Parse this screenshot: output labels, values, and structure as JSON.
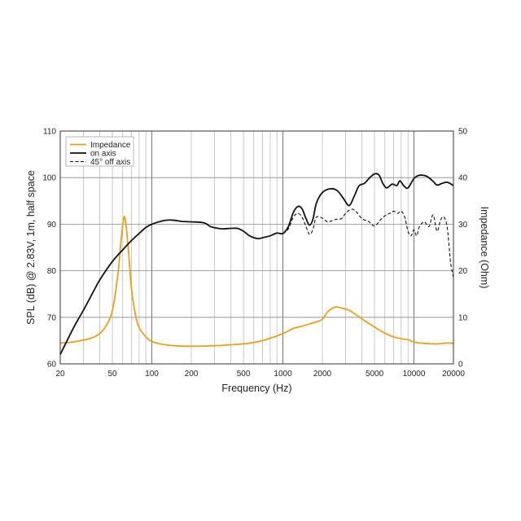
{
  "chart_data": {
    "type": "line",
    "xscale": "log",
    "xlabel": "Frequency (Hz)",
    "ylabel": "SPL (dB) @ 2.83V, 1m, half space",
    "y2label": "Impedance (Ohm)",
    "xlim": [
      20,
      20000
    ],
    "ylim": [
      60,
      110
    ],
    "y2lim": [
      0,
      50
    ],
    "grid": true,
    "legend_position": "top-left",
    "x_ticks": [
      {
        "value": 20,
        "label": "20"
      },
      {
        "value": 50,
        "label": "50"
      },
      {
        "value": 100,
        "label": "100"
      },
      {
        "value": 200,
        "label": "200"
      },
      {
        "value": 500,
        "label": "500"
      },
      {
        "value": 1000,
        "label": "1000"
      },
      {
        "value": 2000,
        "label": "2000"
      },
      {
        "value": 5000,
        "label": "5000"
      },
      {
        "value": 10000,
        "label": "10000"
      },
      {
        "value": 20000,
        "label": "20000"
      }
    ],
    "y_ticks": [
      {
        "value": 60,
        "label": "60"
      },
      {
        "value": 70,
        "label": "70"
      },
      {
        "value": 80,
        "label": "80"
      },
      {
        "value": 90,
        "label": "90"
      },
      {
        "value": 100,
        "label": "100"
      },
      {
        "value": 110,
        "label": "110"
      }
    ],
    "y2_ticks": [
      {
        "value": 0,
        "label": "0"
      },
      {
        "value": 10,
        "label": "10"
      },
      {
        "value": 20,
        "label": "20"
      },
      {
        "value": 30,
        "label": "30"
      },
      {
        "value": 40,
        "label": "40"
      },
      {
        "value": 50,
        "label": "50"
      }
    ],
    "series": [
      {
        "name": "Impedance",
        "axis": "right",
        "color": "#e8a11f",
        "dash": "solid",
        "points": [
          [
            20,
            4.5
          ],
          [
            25,
            4.7
          ],
          [
            30,
            5.1
          ],
          [
            35,
            5.6
          ],
          [
            40,
            6.5
          ],
          [
            45,
            8.3
          ],
          [
            50,
            11.5
          ],
          [
            55,
            19
          ],
          [
            58,
            26
          ],
          [
            61,
            31.3
          ],
          [
            63,
            30.5
          ],
          [
            66,
            25
          ],
          [
            70,
            16
          ],
          [
            75,
            10.5
          ],
          [
            80,
            7.8
          ],
          [
            90,
            5.8
          ],
          [
            100,
            4.8
          ],
          [
            120,
            4.2
          ],
          [
            150,
            3.9
          ],
          [
            200,
            3.8
          ],
          [
            300,
            3.9
          ],
          [
            400,
            4.1
          ],
          [
            500,
            4.3
          ],
          [
            600,
            4.6
          ],
          [
            700,
            5.0
          ],
          [
            800,
            5.5
          ],
          [
            1000,
            6.5
          ],
          [
            1200,
            7.6
          ],
          [
            1400,
            8.1
          ],
          [
            1600,
            8.6
          ],
          [
            1800,
            9.0
          ],
          [
            2000,
            9.6
          ],
          [
            2200,
            11.2
          ],
          [
            2500,
            12.2
          ],
          [
            2800,
            12.0
          ],
          [
            3200,
            11.5
          ],
          [
            3600,
            10.6
          ],
          [
            4000,
            9.7
          ],
          [
            5000,
            7.9
          ],
          [
            6000,
            6.6
          ],
          [
            7000,
            5.8
          ],
          [
            8000,
            5.4
          ],
          [
            9000,
            5.2
          ],
          [
            10000,
            4.7
          ],
          [
            12000,
            4.4
          ],
          [
            15000,
            4.3
          ],
          [
            18000,
            4.5
          ],
          [
            20000,
            4.4
          ]
        ]
      },
      {
        "name": "on axis",
        "axis": "left",
        "color": "#111111",
        "dash": "solid",
        "points": [
          [
            20,
            62
          ],
          [
            25,
            67.5
          ],
          [
            30,
            71.5
          ],
          [
            35,
            75
          ],
          [
            40,
            78
          ],
          [
            50,
            82
          ],
          [
            60,
            84.5
          ],
          [
            70,
            86.5
          ],
          [
            80,
            88
          ],
          [
            90,
            89.3
          ],
          [
            100,
            90
          ],
          [
            120,
            90.7
          ],
          [
            140,
            90.9
          ],
          [
            170,
            90.6
          ],
          [
            200,
            90.5
          ],
          [
            250,
            90.3
          ],
          [
            280,
            89.5
          ],
          [
            320,
            89.1
          ],
          [
            350,
            89
          ],
          [
            400,
            89.1
          ],
          [
            450,
            89.1
          ],
          [
            500,
            88.5
          ],
          [
            550,
            87.6
          ],
          [
            600,
            87.1
          ],
          [
            650,
            86.9
          ],
          [
            700,
            87.1
          ],
          [
            800,
            87.5
          ],
          [
            900,
            88.1
          ],
          [
            1000,
            88
          ],
          [
            1100,
            89.5
          ],
          [
            1200,
            92.5
          ],
          [
            1300,
            93.8
          ],
          [
            1400,
            93.3
          ],
          [
            1500,
            91.2
          ],
          [
            1600,
            89.8
          ],
          [
            1700,
            91.2
          ],
          [
            1800,
            94.5
          ],
          [
            2000,
            96.8
          ],
          [
            2300,
            97.6
          ],
          [
            2600,
            97.2
          ],
          [
            2900,
            95.5
          ],
          [
            3200,
            94.0
          ],
          [
            3500,
            96.0
          ],
          [
            3800,
            98.2
          ],
          [
            4200,
            98.8
          ],
          [
            4600,
            100
          ],
          [
            5000,
            100.8
          ],
          [
            5400,
            100.6
          ],
          [
            5800,
            98.7
          ],
          [
            6200,
            97.8
          ],
          [
            6800,
            98.6
          ],
          [
            7400,
            98.3
          ],
          [
            7800,
            99.3
          ],
          [
            8400,
            98.2
          ],
          [
            9000,
            97.8
          ],
          [
            10000,
            99.8
          ],
          [
            11000,
            100.5
          ],
          [
            12500,
            100.3
          ],
          [
            14000,
            99.2
          ],
          [
            15000,
            98.4
          ],
          [
            16500,
            98.8
          ],
          [
            18000,
            99.0
          ],
          [
            20000,
            98.3
          ]
        ]
      },
      {
        "name": "45° off axis",
        "axis": "left",
        "color": "#111111",
        "dash": "dashed",
        "points": [
          [
            1000,
            88
          ],
          [
            1100,
            89
          ],
          [
            1200,
            91.5
          ],
          [
            1300,
            92.3
          ],
          [
            1400,
            91.5
          ],
          [
            1500,
            89.5
          ],
          [
            1600,
            87.8
          ],
          [
            1700,
            89
          ],
          [
            1800,
            91.5
          ],
          [
            2000,
            91.3
          ],
          [
            2200,
            90.5
          ],
          [
            2500,
            91
          ],
          [
            2800,
            91.2
          ],
          [
            3000,
            92.3
          ],
          [
            3300,
            93.2
          ],
          [
            3600,
            92.8
          ],
          [
            4000,
            91.2
          ],
          [
            4500,
            90.6
          ],
          [
            5000,
            89.6
          ],
          [
            5500,
            90.8
          ],
          [
            6000,
            91.8
          ],
          [
            6500,
            92.3
          ],
          [
            7000,
            92.8
          ],
          [
            7500,
            92.3
          ],
          [
            8000,
            92.8
          ],
          [
            8500,
            91.5
          ],
          [
            9000,
            88.5
          ],
          [
            9500,
            87.5
          ],
          [
            10000,
            88.8
          ],
          [
            10500,
            87.5
          ],
          [
            11000,
            89.5
          ],
          [
            12000,
            90.5
          ],
          [
            13000,
            89.5
          ],
          [
            14000,
            92.0
          ],
          [
            15000,
            88.5
          ],
          [
            16000,
            91.0
          ],
          [
            17000,
            91.5
          ],
          [
            18000,
            89
          ],
          [
            19000,
            82
          ],
          [
            20000,
            78.5
          ]
        ]
      }
    ]
  }
}
